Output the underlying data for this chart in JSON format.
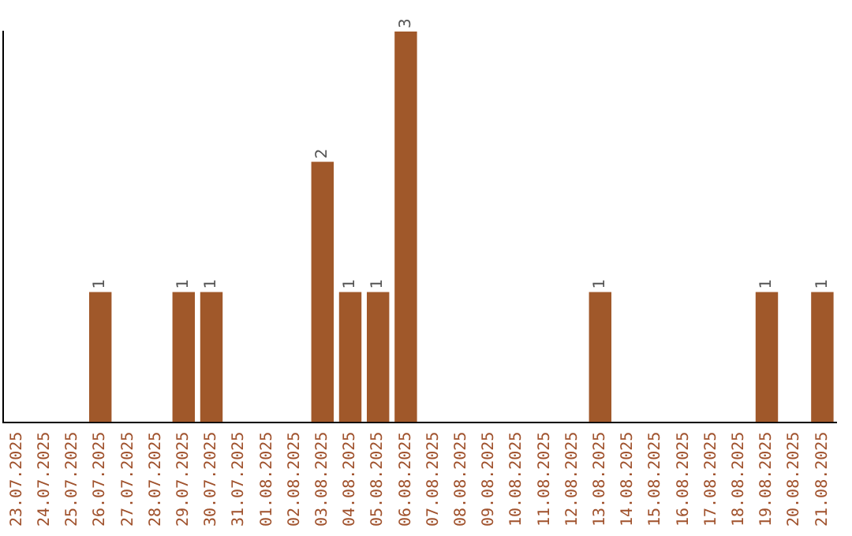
{
  "chart_data": {
    "type": "bar",
    "categories": [
      "23.07.2025",
      "24.07.2025",
      "25.07.2025",
      "26.07.2025",
      "27.07.2025",
      "28.07.2025",
      "29.07.2025",
      "30.07.2025",
      "31.07.2025",
      "01.08.2025",
      "02.08.2025",
      "03.08.2025",
      "04.08.2025",
      "05.08.2025",
      "06.08.2025",
      "07.08.2025",
      "08.08.2025",
      "09.08.2025",
      "10.08.2025",
      "11.08.2025",
      "12.08.2025",
      "13.08.2025",
      "14.08.2025",
      "15.08.2025",
      "16.08.2025",
      "17.08.2025",
      "18.08.2025",
      "19.08.2025",
      "20.08.2025",
      "21.08.2025"
    ],
    "values": [
      0,
      0,
      0,
      1,
      0,
      0,
      1,
      1,
      0,
      0,
      0,
      2,
      1,
      1,
      3,
      0,
      0,
      0,
      0,
      0,
      0,
      1,
      0,
      0,
      0,
      0,
      0,
      1,
      0,
      1
    ],
    "value_labels": [
      null,
      null,
      null,
      "1",
      null,
      null,
      "1",
      "1",
      null,
      null,
      null,
      "2",
      "1",
      "1",
      "3",
      null,
      null,
      null,
      null,
      null,
      null,
      "1",
      null,
      null,
      null,
      null,
      null,
      "1",
      null,
      "1"
    ],
    "color": "#a0582a",
    "grid": false,
    "legend": false,
    "tick_labels": "x"
  }
}
